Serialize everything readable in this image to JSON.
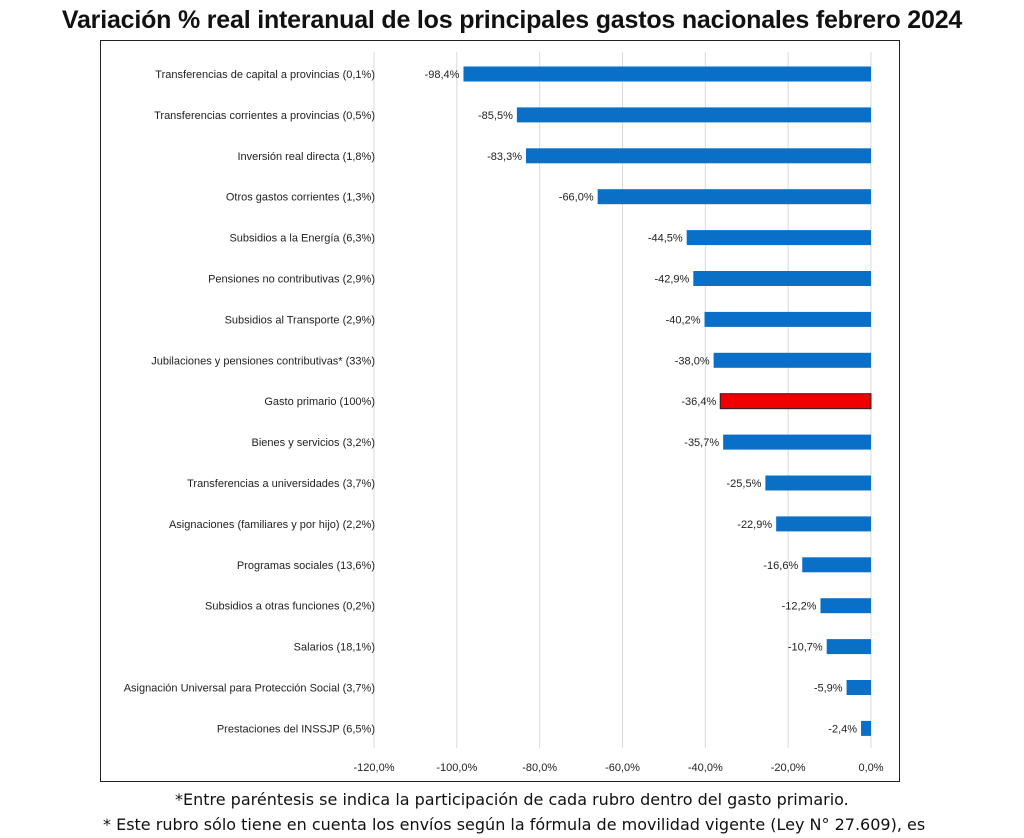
{
  "chart_data": {
    "type": "bar",
    "orientation": "horizontal",
    "title": "Variación % real interanual de los principales gastos nacionales febrero 2024",
    "categories": [
      "Transferencias de capital a provincias (0,1%)",
      "Transferencias corrientes a provincias (0,5%)",
      "Inversión real directa (1,8%)",
      "Otros gastos corrientes (1,3%)",
      "Subsidios a la Energía (6,3%)",
      "Pensiones no contributivas (2,9%)",
      "Subsidios al Transporte (2,9%)",
      "Jubilaciones y pensiones contributivas* (33%)",
      "Gasto primario (100%)",
      "Bienes y servicios (3,2%)",
      "Transferencias a universidades (3,7%)",
      "Asignaciones (familiares y por hijo) (2,2%)",
      "Programas sociales (13,6%)",
      "Subsidios a otras funciones (0,2%)",
      "Salarios (18,1%)",
      "Asignación Universal para Protección Social (3,7%)",
      "Prestaciones del INSSJP (6,5%)"
    ],
    "values": [
      -98.4,
      -85.5,
      -83.3,
      -66.0,
      -44.5,
      -42.9,
      -40.2,
      -38.0,
      -36.4,
      -35.7,
      -25.5,
      -22.9,
      -16.6,
      -12.2,
      -10.7,
      -5.9,
      -2.4
    ],
    "value_labels": [
      "-98,4%",
      "-85,5%",
      "-83,3%",
      "-66,0%",
      "-44,5%",
      "-42,9%",
      "-40,2%",
      "-38,0%",
      "-36,4%",
      "-35,7%",
      "-25,5%",
      "-22,9%",
      "-16,6%",
      "-12,2%",
      "-10,7%",
      "-5,9%",
      "-2,4%"
    ],
    "highlight_index": 8,
    "xlim": [
      -120,
      0
    ],
    "xticks": [
      -120,
      -100,
      -80,
      -60,
      -40,
      -20,
      0
    ],
    "xtick_labels": [
      "-120,0%",
      "-100,0%",
      "-80,0%",
      "-60,0%",
      "-40,0%",
      "-20,0%",
      "0,0%"
    ],
    "grid": "vertical",
    "colors": {
      "bar": "#0a6fc6",
      "highlight": "#ee0000",
      "grid": "#d9d9d9",
      "text": "#222222"
    }
  },
  "notes": {
    "line1": "*Entre paréntesis se indica la participación de cada rubro dentro del gasto primario.",
    "line2": "* Este rubro sólo tiene en cuenta los envíos según la fórmula de movilidad vigente (Ley N° 27.609), es"
  }
}
